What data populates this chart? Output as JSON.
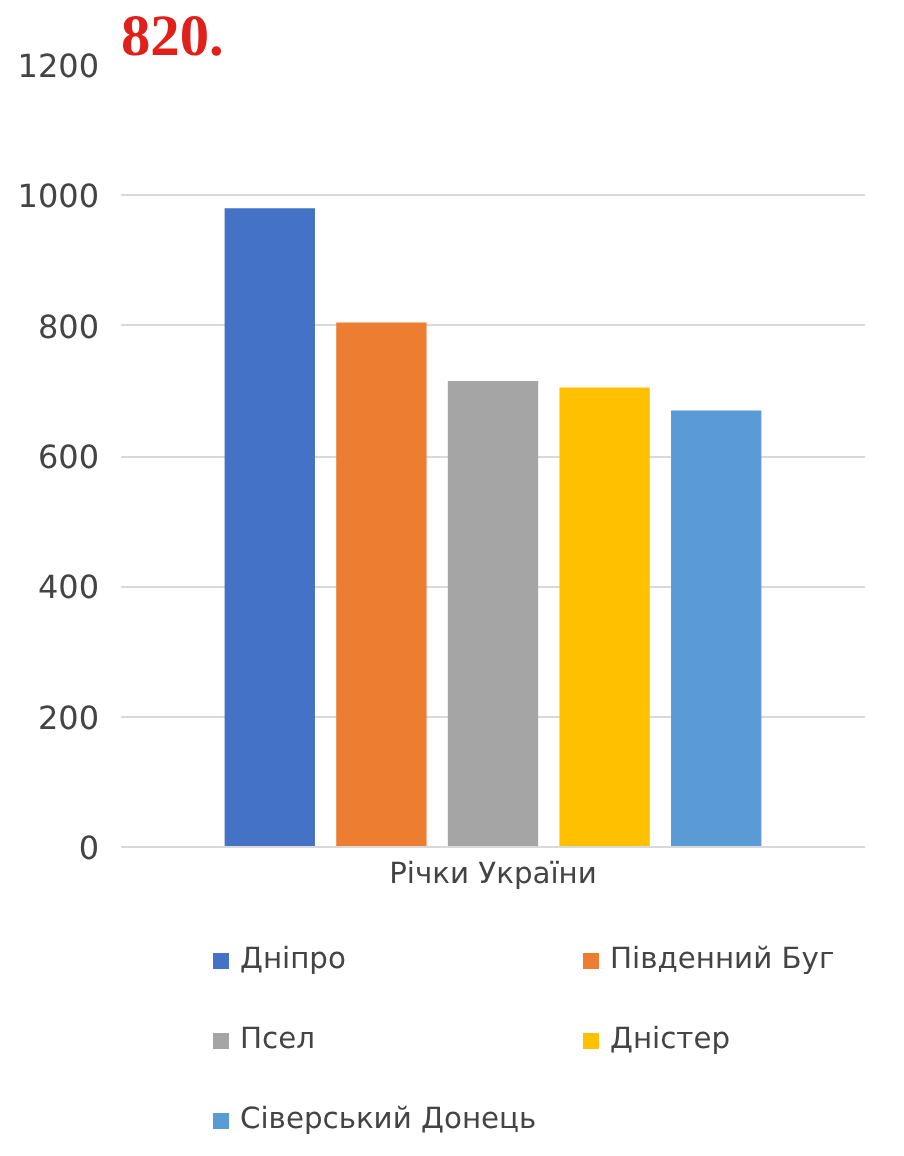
{
  "chart_data": {
    "type": "bar",
    "title": "820.",
    "xlabel": "Річки України",
    "categories": [
      null
    ],
    "series": [
      {
        "name": "Дніпро",
        "color": "#4472c4",
        "values": [
          980
        ]
      },
      {
        "name": "Південний Буг",
        "color": "#ed7d31",
        "values": [
          805
        ]
      },
      {
        "name": "Псел",
        "color": "#a5a5a5",
        "values": [
          715
        ]
      },
      {
        "name": "Дністер",
        "color": "#ffc000",
        "values": [
          705
        ]
      },
      {
        "name": "Сіверський Донець",
        "color": "#5b9bd5",
        "values": [
          670
        ]
      }
    ],
    "ylim": [
      0,
      1200
    ],
    "yticks": [
      0,
      200,
      400,
      600,
      800,
      1000,
      1200
    ],
    "grid": "y",
    "legend": "bottom"
  }
}
